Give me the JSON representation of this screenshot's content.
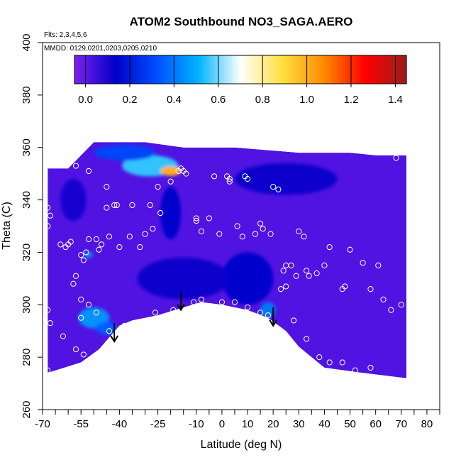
{
  "chart_data": {
    "type": "heatmap",
    "title": "ATOM2 Southbound NO3_SAGA.AERO",
    "subtitle_flights": "Flts: 2,3,4,5,6",
    "subtitle_dates": "MMDD: 0129,0201,0203,0205,0210",
    "xlabel": "Latitude (deg N)",
    "ylabel": "Theta (C)",
    "xlim": [
      -70,
      85
    ],
    "ylim": [
      260,
      400
    ],
    "x_ticks": [
      -70,
      -55,
      -40,
      -25,
      -10,
      0,
      10,
      20,
      30,
      40,
      50,
      60,
      70,
      80
    ],
    "x_minor_ticks": [
      -65,
      -60,
      -50,
      -45,
      -35,
      -30,
      -20,
      -15,
      -5,
      5,
      15,
      25,
      35,
      45,
      55,
      65,
      75,
      85
    ],
    "y_ticks": [
      260,
      280,
      300,
      320,
      340,
      360,
      380,
      400
    ],
    "colorbar": {
      "ticks": [
        0.0,
        0.2,
        0.4,
        0.6,
        0.8,
        1.0,
        1.2,
        1.4
      ],
      "tick_labels": [
        "0.0",
        "0.2",
        "0.4",
        "0.6",
        "0.8",
        "1.0",
        "1.2",
        "1.4"
      ],
      "range": [
        -0.05,
        1.45
      ],
      "stops": [
        "#7f1ff0",
        "#0000c8",
        "#0050ff",
        "#00b4ff",
        "#ffffff",
        "#ffe040",
        "#ff8c00",
        "#ff0000",
        "#9c1c1c"
      ]
    },
    "background_value": 0.02,
    "coverage_top": [
      [
        -68,
        352
      ],
      [
        -60,
        352
      ],
      [
        -55,
        357
      ],
      [
        -50,
        362
      ],
      [
        -30,
        362
      ],
      [
        -15,
        360
      ],
      [
        5,
        360
      ],
      [
        30,
        358
      ],
      [
        50,
        358
      ],
      [
        60,
        357
      ],
      [
        72,
        357
      ]
    ],
    "coverage_bottom": [
      [
        72,
        272
      ],
      [
        55,
        274
      ],
      [
        40,
        276
      ],
      [
        30,
        284
      ],
      [
        25,
        290
      ],
      [
        18,
        295
      ],
      [
        10,
        298
      ],
      [
        0,
        300
      ],
      [
        -8,
        301
      ],
      [
        -15,
        299
      ],
      [
        -25,
        296
      ],
      [
        -35,
        294
      ],
      [
        -40,
        292
      ],
      [
        -48,
        283
      ],
      [
        -55,
        278
      ],
      [
        -68,
        274
      ]
    ],
    "features": [
      {
        "lat": -28,
        "theta": 353,
        "value": 0.55,
        "rx": 11,
        "ry": 4
      },
      {
        "lat": -20,
        "theta": 351,
        "value": 1.0,
        "rx": 4,
        "ry": 1.8
      },
      {
        "lat": -38,
        "theta": 358,
        "value": 0.3,
        "rx": 12,
        "ry": 3
      },
      {
        "lat": -50,
        "theta": 295,
        "value": 0.45,
        "rx": 6,
        "ry": 4
      },
      {
        "lat": -45,
        "theta": 291,
        "value": 0.35,
        "rx": 4,
        "ry": 2.5
      },
      {
        "lat": -52,
        "theta": 319,
        "value": 0.45,
        "rx": 1.5,
        "ry": 1.2
      },
      {
        "lat": 18,
        "theta": 298,
        "value": 0.4,
        "rx": 3,
        "ry": 3
      },
      {
        "lat": 10,
        "theta": 310,
        "value": 0.15,
        "rx": 10,
        "ry": 10
      },
      {
        "lat": -15,
        "theta": 310,
        "value": 0.12,
        "rx": 18,
        "ry": 8
      },
      {
        "lat": -20,
        "theta": 335,
        "value": 0.15,
        "rx": 4,
        "ry": 10
      },
      {
        "lat": 25,
        "theta": 348,
        "value": 0.12,
        "rx": 20,
        "ry": 6
      },
      {
        "lat": -58,
        "theta": 340,
        "value": 0.1,
        "rx": 5,
        "ry": 8
      }
    ],
    "observations": [
      [
        -57,
        353
      ],
      [
        -45,
        345
      ],
      [
        -52,
        351
      ],
      [
        -45,
        337
      ],
      [
        -42,
        338
      ],
      [
        -41,
        338
      ],
      [
        -35,
        338
      ],
      [
        -28,
        338
      ],
      [
        -24,
        335
      ],
      [
        -25,
        345
      ],
      [
        -20,
        347
      ],
      [
        -17,
        351
      ],
      [
        -16,
        352
      ],
      [
        -15,
        351
      ],
      [
        -14,
        350
      ],
      [
        -68,
        337
      ],
      [
        -67,
        334
      ],
      [
        -68,
        330
      ],
      [
        -63,
        323
      ],
      [
        -61,
        322
      ],
      [
        -60,
        323
      ],
      [
        -59,
        324
      ],
      [
        -55,
        319
      ],
      [
        -54,
        317
      ],
      [
        -53,
        320
      ],
      [
        -52,
        325
      ],
      [
        -49,
        325
      ],
      [
        -48,
        321
      ],
      [
        -47,
        323
      ],
      [
        -44,
        326
      ],
      [
        -40,
        322
      ],
      [
        -36,
        326
      ],
      [
        -32,
        322
      ],
      [
        -30,
        327
      ],
      [
        -27,
        329
      ],
      [
        -10,
        333
      ],
      [
        -10,
        332
      ],
      [
        -8,
        328
      ],
      [
        -5,
        333
      ],
      [
        -3,
        349
      ],
      [
        -1,
        327
      ],
      [
        2,
        349
      ],
      [
        3,
        348
      ],
      [
        3,
        347
      ],
      [
        6,
        330
      ],
      [
        8,
        326
      ],
      [
        9,
        349
      ],
      [
        10,
        348
      ],
      [
        13,
        327
      ],
      [
        15,
        331
      ],
      [
        16,
        329
      ],
      [
        19,
        327
      ],
      [
        20,
        345
      ],
      [
        22,
        344
      ],
      [
        24,
        313
      ],
      [
        25,
        315
      ],
      [
        27,
        315
      ],
      [
        29,
        311
      ],
      [
        30,
        328
      ],
      [
        32,
        326
      ],
      [
        33,
        313
      ],
      [
        34,
        311
      ],
      [
        37,
        312
      ],
      [
        40,
        315
      ],
      [
        42,
        322
      ],
      [
        47,
        306
      ],
      [
        48,
        307
      ],
      [
        50,
        321
      ],
      [
        55,
        316
      ],
      [
        58,
        306
      ],
      [
        61,
        315
      ],
      [
        63,
        302
      ],
      [
        66,
        298
      ],
      [
        68,
        356
      ],
      [
        -68,
        298
      ],
      [
        -67,
        293
      ],
      [
        -62,
        288
      ],
      [
        -57,
        283
      ],
      [
        -54,
        281
      ],
      [
        -50,
        279
      ],
      [
        -55,
        295
      ],
      [
        -55,
        302
      ],
      [
        -58,
        308
      ],
      [
        -57,
        311
      ],
      [
        -52,
        300
      ],
      [
        -49,
        297
      ],
      [
        -44,
        290
      ],
      [
        -41,
        288
      ],
      [
        -38,
        292
      ],
      [
        -33,
        293
      ],
      [
        -26,
        297
      ],
      [
        -19,
        298
      ],
      [
        -11,
        301
      ],
      [
        -8,
        302
      ],
      [
        0,
        301
      ],
      [
        5,
        301
      ],
      [
        10,
        299
      ],
      [
        15,
        297
      ],
      [
        18,
        296
      ],
      [
        23,
        306
      ],
      [
        25,
        307
      ],
      [
        28,
        294
      ],
      [
        33,
        287
      ],
      [
        38,
        280
      ],
      [
        42,
        278
      ],
      [
        47,
        278
      ],
      [
        52,
        275
      ],
      [
        58,
        276
      ],
      [
        70,
        300
      ],
      [
        -68,
        275
      ]
    ],
    "arrows": [
      {
        "lat": -42,
        "theta_from": 293,
        "theta_to": 286
      },
      {
        "lat": -16,
        "theta_from": 305,
        "theta_to": 298
      },
      {
        "lat": 20,
        "theta_from": 299,
        "theta_to": 292
      }
    ]
  }
}
